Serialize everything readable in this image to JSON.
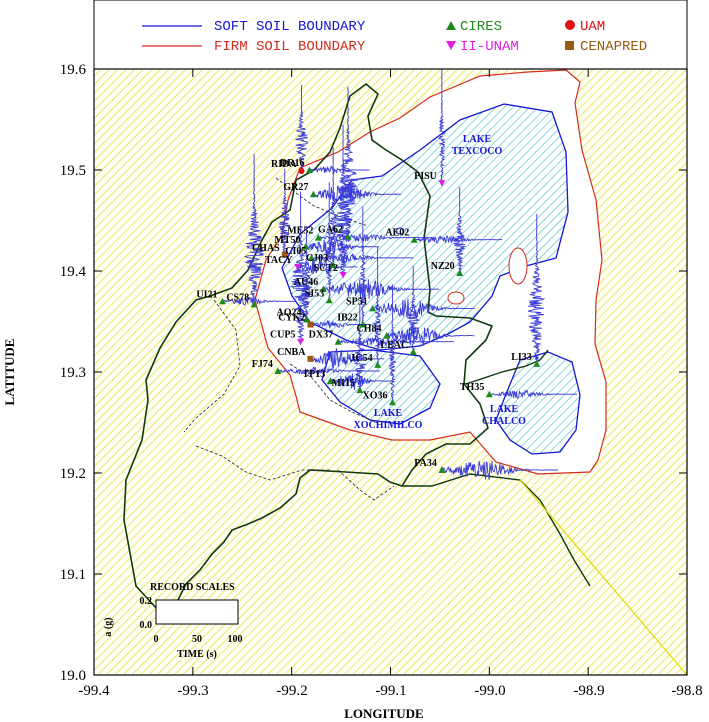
{
  "legend": {
    "soft_soil": "SOFT SOIL BOUNDARY",
    "firm_soil": "FIRM SOIL BOUNDARY",
    "cires": "CIRES",
    "ii_unam": "II-UNAM",
    "uam": "UAM",
    "cenapred": "CENAPRED"
  },
  "colors": {
    "soft_soil": "#1515d4",
    "firm_soil": "#d42a1a",
    "cires": "#1e8a1e",
    "ii_unam": "#e020e0",
    "uam": "#e01010",
    "cenapred": "#9a5a10",
    "hatch_yellow": "#e6e04a",
    "hatch_cyan": "#48c0c8",
    "record": "#3a3ad8",
    "boundary": "#103a10"
  },
  "axes": {
    "xlabel": "LONGITUDE",
    "ylabel": "LATITUDE",
    "xlim": [
      -99.4,
      -98.8
    ],
    "ylim": [
      19.0,
      19.6
    ],
    "xticks": [
      "-99.4",
      "-99.3",
      "-99.2",
      "-99.1",
      "-99.0",
      "-98.9",
      "-98.8"
    ],
    "yticks": [
      "19.0",
      "19.1",
      "19.2",
      "19.3",
      "19.4",
      "19.5",
      "19.6"
    ]
  },
  "lakes": [
    {
      "name": "LAKE",
      "sub": "TEXCOCO"
    },
    {
      "name": "LAKE",
      "sub": "XOCHIMILCO"
    },
    {
      "name": "LAKE",
      "sub": "CHALCO"
    }
  ],
  "scale_box": {
    "title": "RECORD SCALES",
    "y_axis_label": "a (g)",
    "y_ticks": [
      "0.2",
      "0.0"
    ],
    "x_ticks": [
      "0",
      "50",
      "100"
    ],
    "x_axis_label": "TIME (s)"
  },
  "stations": [
    {
      "code": "DR16",
      "type": "cires",
      "lon": -99.182,
      "lat": 19.5
    },
    {
      "code": "RIDA",
      "type": "uam",
      "lon": -99.19,
      "lat": 19.499
    },
    {
      "code": "GR27",
      "type": "cires",
      "lon": -99.178,
      "lat": 19.476
    },
    {
      "code": "PISU",
      "type": "ii_unam",
      "lon": -99.048,
      "lat": 19.487
    },
    {
      "code": "ME52",
      "type": "cires",
      "lon": -99.173,
      "lat": 19.433
    },
    {
      "code": "GA62",
      "type": "cires",
      "lon": -99.143,
      "lat": 19.434
    },
    {
      "code": "MT50",
      "type": "cires",
      "lon": -99.186,
      "lat": 19.424
    },
    {
      "code": "CHAS",
      "type": "cenapred",
      "lon": -99.207,
      "lat": 19.416
    },
    {
      "code": "CI05",
      "type": "cires",
      "lon": -99.18,
      "lat": 19.413
    },
    {
      "code": "CJ03",
      "type": "cires",
      "lon": -99.158,
      "lat": 19.406
    },
    {
      "code": "TACY",
      "type": "ii_unam",
      "lon": -99.194,
      "lat": 19.404
    },
    {
      "code": "SCT2",
      "type": "ii_unam",
      "lon": -99.148,
      "lat": 19.396
    },
    {
      "code": "AE02",
      "type": "cires",
      "lon": -99.076,
      "lat": 19.431
    },
    {
      "code": "NZ20",
      "type": "cires",
      "lon": -99.03,
      "lat": 19.398
    },
    {
      "code": "AU46",
      "type": "cires",
      "lon": -99.168,
      "lat": 19.382
    },
    {
      "code": "SI53",
      "type": "cires",
      "lon": -99.162,
      "lat": 19.371
    },
    {
      "code": "UI21",
      "type": "cires",
      "lon": -99.27,
      "lat": 19.37
    },
    {
      "code": "CS78",
      "type": "cires",
      "lon": -99.238,
      "lat": 19.367
    },
    {
      "code": "SP51",
      "type": "cires",
      "lon": -99.118,
      "lat": 19.363
    },
    {
      "code": "AO24",
      "type": "cires",
      "lon": -99.185,
      "lat": 19.352
    },
    {
      "code": "CYK2",
      "type": "cenapred",
      "lon": -99.181,
      "lat": 19.347
    },
    {
      "code": "IB22",
      "type": "cires",
      "lon": -99.128,
      "lat": 19.347
    },
    {
      "code": "CH84",
      "type": "cires",
      "lon": -99.104,
      "lat": 19.336
    },
    {
      "code": "CUP5",
      "type": "ii_unam",
      "lon": -99.191,
      "lat": 19.33
    },
    {
      "code": "DX37",
      "type": "cires",
      "lon": -99.153,
      "lat": 19.33
    },
    {
      "code": "LEAC",
      "type": "cires",
      "lon": -99.077,
      "lat": 19.32
    },
    {
      "code": "CNBA",
      "type": "cenapred",
      "lon": -99.181,
      "lat": 19.313
    },
    {
      "code": "JC54",
      "type": "cires",
      "lon": -99.113,
      "lat": 19.307
    },
    {
      "code": "FJ74",
      "type": "cires",
      "lon": -99.214,
      "lat": 19.301
    },
    {
      "code": "LI33",
      "type": "cires",
      "lon": -98.952,
      "lat": 19.308
    },
    {
      "code": "TP13",
      "type": "cires",
      "lon": -99.161,
      "lat": 19.291
    },
    {
      "code": "MI15",
      "type": "cires",
      "lon": -99.131,
      "lat": 19.282
    },
    {
      "code": "TH35",
      "type": "cires",
      "lon": -99.0,
      "lat": 19.278
    },
    {
      "code": "XO36",
      "type": "cires",
      "lon": -99.098,
      "lat": 19.27
    },
    {
      "code": "PA34",
      "type": "cires",
      "lon": -99.048,
      "lat": 19.203
    }
  ]
}
